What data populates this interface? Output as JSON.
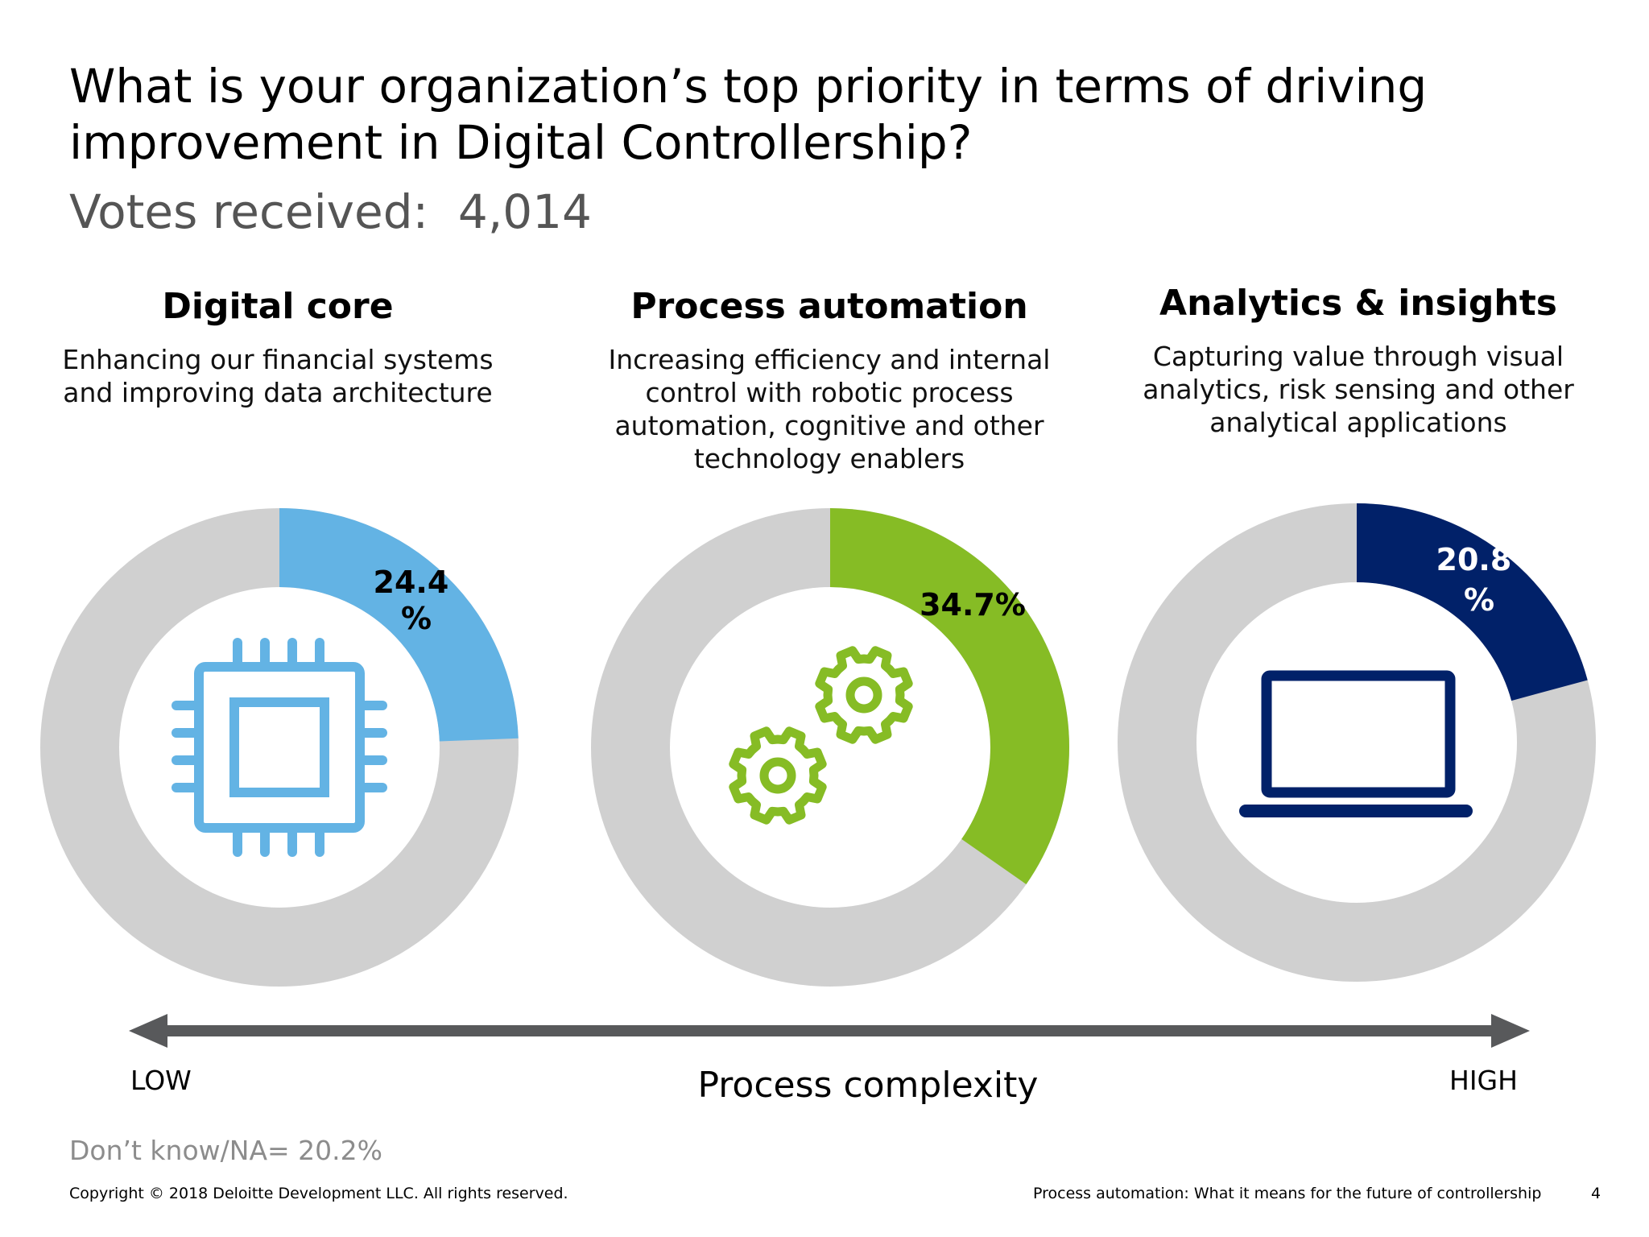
{
  "title_lines": [
    "What is your organization’s top priority in terms of driving",
    "improvement in Digital Controllership?"
  ],
  "votes_label": "Votes received:  4,014",
  "columns": [
    {
      "heading": "Digital core",
      "desc": [
        "Enhancing our financial systems",
        "and improving data architecture"
      ],
      "pct_lines": [
        "24.4",
        "%"
      ],
      "icon": "chip-icon"
    },
    {
      "heading": "Process automation",
      "desc": [
        "Increasing efficiency and internal",
        "control with robotic process",
        "automation, cognitive and other",
        "technology enablers"
      ],
      "pct_lines": [
        "34.7%"
      ],
      "icon": "gears-icon"
    },
    {
      "heading": "Analytics & insights",
      "desc": [
        "Capturing value through visual",
        "analytics, risk sensing and other",
        "analytical applications"
      ],
      "pct_lines": [
        "20.8",
        "%"
      ],
      "icon": "laptop-icon"
    }
  ],
  "chart_data": {
    "type": "pie",
    "categories": [
      "Digital core",
      "Process automation",
      "Analytics & insights"
    ],
    "values": [
      24.4,
      34.7,
      20.8
    ],
    "unit": "%",
    "colors": [
      "#63b3e4",
      "#86bc25",
      "#012169"
    ],
    "track_color": "#d0d0d0"
  },
  "axis": {
    "low": "LOW",
    "high": "HIGH",
    "title": "Process complexity",
    "color": "#58595b"
  },
  "dont_know": "Don’t know/NA= 20.2%",
  "copyright": "Copyright © 2018 Deloitte Development LLC. All rights reserved.",
  "footer_title": "Process automation: What it means for the future of controllership",
  "page_number": "4"
}
